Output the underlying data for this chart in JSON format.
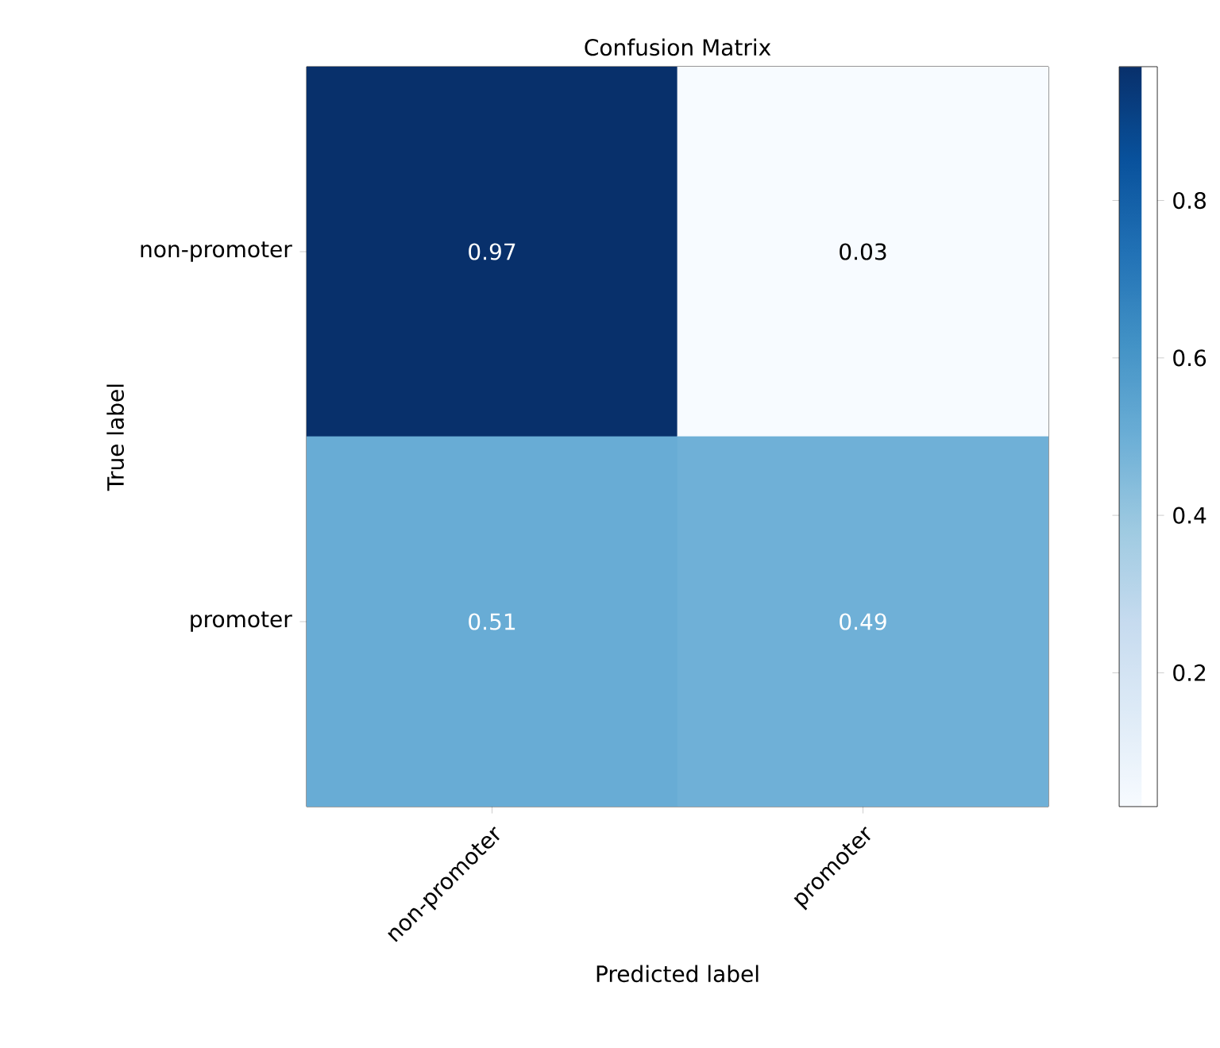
{
  "chart_data": {
    "type": "heatmap",
    "title": "Confusion Matrix",
    "xlabel": "Predicted label",
    "ylabel": "True label",
    "categories": [
      "non-promoter",
      "promoter"
    ],
    "y_categories": [
      "non-promoter",
      "promoter"
    ],
    "cells": [
      [
        0.97,
        0.03
      ],
      [
        0.51,
        0.49
      ]
    ],
    "clim": [
      0.03,
      0.97
    ],
    "cticks": [
      0.2,
      0.4,
      0.6,
      0.8
    ],
    "data_labels": true
  }
}
